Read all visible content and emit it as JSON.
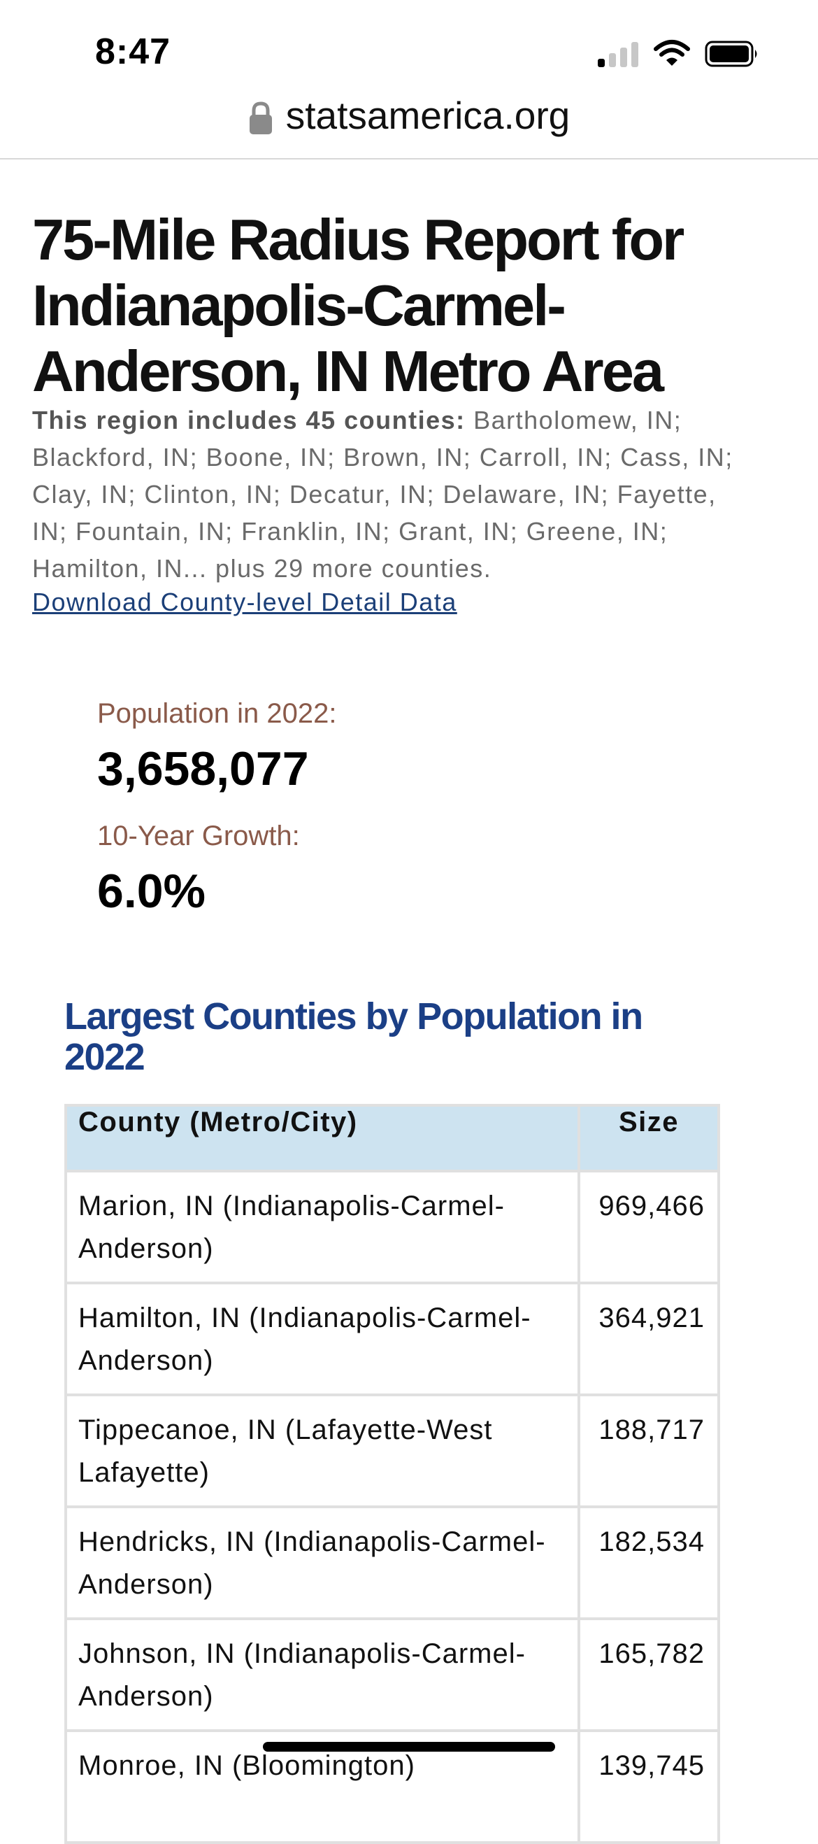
{
  "status_bar": {
    "time": "8:47"
  },
  "url_bar": {
    "domain": "statsamerica.org"
  },
  "page": {
    "title": "75-Mile Radius Report for Indianapolis-Carmel-Anderson, IN Metro Area",
    "region_intro": "This region includes 45 counties:",
    "region_list": " Bartholomew, IN; Blackford, IN; Boone, IN; Brown, IN; Carroll, IN; Cass, IN; Clay, IN; Clinton, IN; Decatur, IN; Delaware, IN; Fayette, IN; Fountain, IN; Franklin, IN; Grant, IN; Greene, IN; Hamilton, IN... plus 29 more counties.",
    "download_link": "Download County-level Detail Data"
  },
  "stats": {
    "population_label": "Population in 2022:",
    "population_value": "3,658,077",
    "growth_label": "10-Year Growth:",
    "growth_value": "6.0%"
  },
  "table": {
    "title": "Largest Counties by Population in 2022",
    "headers": [
      "County (Metro/City)",
      "Size"
    ],
    "rows": [
      [
        "Marion, IN (Indianapolis-Carmel-Anderson)",
        "969,466"
      ],
      [
        "Hamilton, IN (Indianapolis-Carmel-Anderson)",
        "364,921"
      ],
      [
        "Tippecanoe, IN (Lafayette-West Lafayette)",
        "188,717"
      ],
      [
        "Hendricks, IN (Indianapolis-Carmel-Anderson)",
        "182,534"
      ],
      [
        "Johnson, IN (Indianapolis-Carmel-Anderson)",
        "165,782"
      ],
      [
        "Monroe, IN (Bloomington)",
        "139,745"
      ]
    ]
  }
}
